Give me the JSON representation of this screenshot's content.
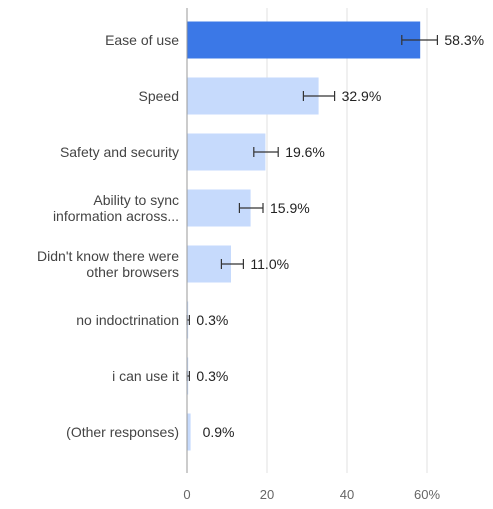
{
  "chart_data": {
    "type": "bar",
    "orientation": "horizontal",
    "categories": [
      [
        "Ease of use"
      ],
      [
        "Speed"
      ],
      [
        "Safety and security"
      ],
      [
        "Ability to sync",
        "information across..."
      ],
      [
        "Didn't know there were",
        "other browsers"
      ],
      [
        "no indoctrination"
      ],
      [
        "i can use it"
      ],
      [
        "(Other responses)"
      ]
    ],
    "values": [
      58.3,
      32.9,
      19.6,
      15.9,
      11.0,
      0.3,
      0.3,
      0.9
    ],
    "value_labels": [
      "58.3%",
      "32.9%",
      "19.6%",
      "15.9%",
      "11.0%",
      "0.3%",
      "0.3%",
      "0.9%"
    ],
    "error_bars": [
      [
        53.7,
        62.6
      ],
      [
        29.1,
        36.9
      ],
      [
        16.7,
        22.8
      ],
      [
        13.1,
        19.0
      ],
      [
        8.6,
        14.1
      ],
      [
        0.0,
        0.6
      ],
      [
        0.0,
        0.6
      ],
      null
    ],
    "highlight_index": 0,
    "xlim": [
      0,
      70
    ],
    "xticks": [
      0,
      20,
      40,
      60
    ],
    "xtick_labels": [
      "0",
      "20",
      "40",
      "60%"
    ],
    "grid": true,
    "colors": {
      "highlight": "#3b78e7",
      "bar": "#c6dafc",
      "error_bar": "#333333",
      "grid": "#e0e0e0",
      "axis": "#999999"
    }
  }
}
